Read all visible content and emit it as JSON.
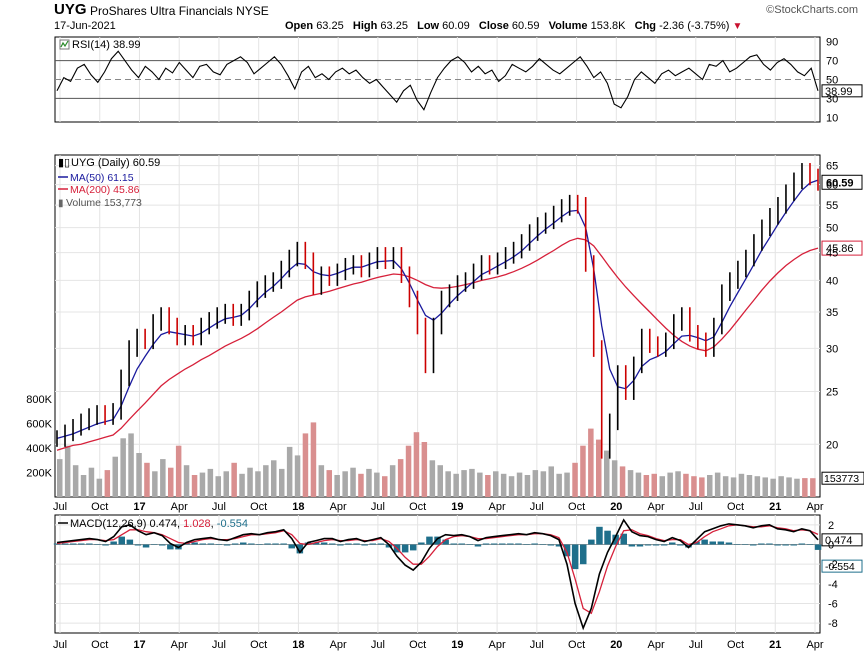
{
  "header": {
    "ticker": "UYG",
    "name": "ProShares Ultra Financials",
    "exchange": "NYSE",
    "date": "17-Jun-2021",
    "brand": "©StockCharts.com",
    "open_label": "Open",
    "open": "63.25",
    "high_label": "High",
    "high": "63.25",
    "low_label": "Low",
    "low": "60.09",
    "close_label": "Close",
    "close": "60.59",
    "volume_label": "Volume",
    "volume": "153.8K",
    "chg_label": "Chg",
    "chg": "-2.36 (-3.75%)",
    "chg_color": "#c8102e"
  },
  "chart_data": [
    {
      "type": "line",
      "panel": "rsi",
      "legend": "RSI(14) 38.99",
      "last_value_label": "38.99",
      "yticks": [
        10,
        30,
        50,
        70,
        90
      ],
      "ylim": [
        5,
        95
      ],
      "reference_lines": [
        30,
        70
      ],
      "series": [
        {
          "name": "RSI(14)",
          "values": [
            38,
            52,
            48,
            62,
            66,
            55,
            47,
            58,
            72,
            80,
            70,
            60,
            52,
            64,
            58,
            50,
            62,
            57,
            68,
            60,
            52,
            64,
            66,
            58,
            55,
            66,
            70,
            74,
            68,
            56,
            62,
            68,
            74,
            66,
            54,
            40,
            58,
            64,
            52,
            56,
            50,
            58,
            62,
            56,
            60,
            52,
            46,
            50,
            42,
            34,
            26,
            38,
            44,
            28,
            18,
            36,
            52,
            62,
            70,
            74,
            68,
            58,
            64,
            56,
            60,
            48,
            54,
            66,
            62,
            58,
            64,
            72,
            66,
            60,
            56,
            62,
            68,
            74,
            64,
            52,
            58,
            46,
            24,
            20,
            32,
            50,
            58,
            52,
            46,
            56,
            60,
            54,
            58,
            62,
            56,
            50,
            66,
            64,
            70,
            58,
            62,
            68,
            74,
            76,
            66,
            60,
            68,
            72,
            66,
            58,
            54,
            62,
            38
          ]
        }
      ],
      "colors": {
        "line": "#000000",
        "ref": "#555555",
        "mid": "#888888"
      }
    },
    {
      "type": "line",
      "panel": "price",
      "scale": "log",
      "legend_title": "UYG (Daily) 60.59",
      "ma50_label": "MA(50) 61.15",
      "ma200_label": "MA(200) 45.86",
      "volume_label": "Volume 153,773",
      "last_price_label": "60.59",
      "last_ma200_label": "45.86",
      "yticks": [
        20,
        25,
        30,
        35,
        40,
        45,
        50,
        55,
        60,
        65
      ],
      "ylim": [
        16,
        68
      ],
      "x_labels": [
        "Jul",
        "Oct",
        "17",
        "Apr",
        "Jul",
        "Oct",
        "18",
        "Apr",
        "Jul",
        "Oct",
        "19",
        "Apr",
        "Jul",
        "Oct",
        "20",
        "Apr",
        "Jul",
        "Oct",
        "21",
        "Apr"
      ],
      "series": [
        {
          "name": "UYG (Daily)",
          "values": [
            20.5,
            21.0,
            21.5,
            22.0,
            22.5,
            22.8,
            22.5,
            23.0,
            26.5,
            30.0,
            31.5,
            31.0,
            33.5,
            34.5,
            33.0,
            31.5,
            32.0,
            31.5,
            33.0,
            33.8,
            34.5,
            35.0,
            34.2,
            35.0,
            37.0,
            38.5,
            39.5,
            40.0,
            42.0,
            44.0,
            45.5,
            43.5,
            39.0,
            41.0,
            40.5,
            41.5,
            42.5,
            43.0,
            42.0,
            43.5,
            44.5,
            43.5,
            44.5,
            41.0,
            37.0,
            33.0,
            28.0,
            33.0,
            37.0,
            38.0,
            39.5,
            40.0,
            41.5,
            43.0,
            42.5,
            43.5,
            44.5,
            45.5,
            47.0,
            49.0,
            50.5,
            51.5,
            53.0,
            54.5,
            55.5,
            55.0,
            43.0,
            30.0,
            19.5,
            22.0,
            27.0,
            25.0,
            28.0,
            31.5,
            30.5,
            30.0,
            31.0,
            33.5,
            34.5,
            32.0,
            31.0,
            30.0,
            33.0,
            38.0,
            40.0,
            42.0,
            44.0,
            47.0,
            50.0,
            52.5,
            55.0,
            58.0,
            61.0,
            63.5,
            62.0,
            60.59
          ]
        },
        {
          "name": "MA(50)",
          "values": [
            20.5,
            20.7,
            20.9,
            21.2,
            21.5,
            21.8,
            22.0,
            22.2,
            23.5,
            25.5,
            27.5,
            29.0,
            30.5,
            31.8,
            32.2,
            32.0,
            31.8,
            31.6,
            32.0,
            32.7,
            33.4,
            34.0,
            34.2,
            34.5,
            35.5,
            36.8,
            38.0,
            39.0,
            40.3,
            41.8,
            43.0,
            42.8,
            41.5,
            41.0,
            40.8,
            41.2,
            41.8,
            42.3,
            42.3,
            42.8,
            43.3,
            43.4,
            43.5,
            42.0,
            39.5,
            36.8,
            34.5,
            33.8,
            34.8,
            36.2,
            37.5,
            38.6,
            39.8,
            41.0,
            41.7,
            42.5,
            43.3,
            44.2,
            45.3,
            46.8,
            48.3,
            49.7,
            51.0,
            52.4,
            53.6,
            53.8,
            50.0,
            42.0,
            33.0,
            27.5,
            25.5,
            25.3,
            26.2,
            27.8,
            28.6,
            29.0,
            29.6,
            30.6,
            31.6,
            31.7,
            31.4,
            31.0,
            31.5,
            33.5,
            35.8,
            38.0,
            40.3,
            42.8,
            45.5,
            48.0,
            50.7,
            53.4,
            56.0,
            58.6,
            60.4,
            61.15
          ]
        },
        {
          "name": "MA(200)",
          "values": [
            19.5,
            19.7,
            19.9,
            20.0,
            20.2,
            20.4,
            20.6,
            20.8,
            21.4,
            22.2,
            23.0,
            23.8,
            24.7,
            25.6,
            26.3,
            26.9,
            27.5,
            28.0,
            28.6,
            29.1,
            29.7,
            30.3,
            30.8,
            31.3,
            31.9,
            32.6,
            33.4,
            34.2,
            35.0,
            35.9,
            36.8,
            37.3,
            37.6,
            37.9,
            38.2,
            38.6,
            39.0,
            39.4,
            39.7,
            40.1,
            40.5,
            40.8,
            41.1,
            41.0,
            40.6,
            40.0,
            39.3,
            38.8,
            38.7,
            38.8,
            39.0,
            39.3,
            39.6,
            40.0,
            40.3,
            40.6,
            41.0,
            41.5,
            42.1,
            42.8,
            43.6,
            44.5,
            45.4,
            46.4,
            47.3,
            47.8,
            47.5,
            46.3,
            44.3,
            42.3,
            40.5,
            38.9,
            37.5,
            36.2,
            35.0,
            33.8,
            32.7,
            31.7,
            30.9,
            30.3,
            29.9,
            29.7,
            30.2,
            31.2,
            32.4,
            33.8,
            35.3,
            36.8,
            38.4,
            39.9,
            41.3,
            42.6,
            43.7,
            44.7,
            45.4,
            45.86
          ]
        }
      ],
      "colors": {
        "price_up": "#000000",
        "price_down": "#cc0000",
        "ma50": "#1a1a9e",
        "ma200": "#d6203a",
        "last_price_box": "#000000"
      }
    },
    {
      "type": "bar",
      "panel": "volume",
      "yticks_labels": [
        "200K",
        "400K",
        "600K",
        "800K"
      ],
      "yticks": [
        200000,
        400000,
        600000,
        800000
      ],
      "last_value_label": "153773",
      "values": [
        310000,
        420000,
        260000,
        180000,
        240000,
        150000,
        220000,
        330000,
        480000,
        520000,
        360000,
        280000,
        210000,
        310000,
        240000,
        420000,
        260000,
        180000,
        200000,
        230000,
        170000,
        210000,
        280000,
        190000,
        240000,
        210000,
        260000,
        300000,
        230000,
        410000,
        340000,
        520000,
        610000,
        260000,
        220000,
        180000,
        210000,
        240000,
        190000,
        230000,
        200000,
        170000,
        260000,
        310000,
        420000,
        530000,
        450000,
        300000,
        260000,
        210000,
        190000,
        220000,
        230000,
        200000,
        180000,
        210000,
        190000,
        170000,
        200000,
        180000,
        220000,
        210000,
        250000,
        190000,
        200000,
        280000,
        420000,
        560000,
        470000,
        380000,
        300000,
        250000,
        220000,
        200000,
        180000,
        190000,
        170000,
        200000,
        210000,
        190000,
        170000,
        160000,
        180000,
        200000,
        170000,
        160000,
        190000,
        180000,
        170000,
        160000,
        150000,
        170000,
        160000,
        150000,
        155000,
        153773
      ],
      "colors": {
        "up": "#a9a9a9",
        "down": "#d98f8f"
      }
    },
    {
      "type": "line",
      "panel": "macd",
      "legend_label": "MACD(12,26,9)",
      "macd_value": "0.474",
      "signal_value": "1.028",
      "hist_value": "-0.554",
      "last_macd_label": "0.474",
      "last_hist_label": "-0.554",
      "yticks": [
        2,
        0,
        -2,
        -4,
        -6,
        -8
      ],
      "ylim": [
        -9,
        3
      ],
      "series": [
        {
          "name": "MACD",
          "values": [
            0.2,
            0.3,
            0.4,
            0.5,
            0.6,
            0.5,
            0.3,
            0.8,
            1.8,
            2.0,
            1.4,
            1.0,
            1.2,
            0.9,
            0.1,
            -0.3,
            0.2,
            0.5,
            0.6,
            0.7,
            0.5,
            0.4,
            0.7,
            1.0,
            1.1,
            1.0,
            1.2,
            1.3,
            1.5,
            0.6,
            -0.8,
            0.2,
            0.4,
            0.6,
            0.6,
            0.3,
            0.5,
            0.6,
            0.3,
            0.5,
            0.7,
            0.0,
            -1.2,
            -2.1,
            -2.6,
            -1.8,
            -0.4,
            0.6,
            1.0,
            0.9,
            1.0,
            0.8,
            0.4,
            0.7,
            0.8,
            0.9,
            1.0,
            1.1,
            1.0,
            1.2,
            1.1,
            0.9,
            0.5,
            -2.0,
            -6.0,
            -8.5,
            -6.5,
            -3.0,
            -0.8,
            0.8,
            2.5,
            1.3,
            0.9,
            0.8,
            0.5,
            0.3,
            0.7,
            0.4,
            -0.3,
            0.5,
            1.3,
            1.6,
            1.9,
            2.1,
            2.0,
            1.9,
            1.7,
            1.9,
            2.0,
            1.6,
            1.5,
            1.3,
            1.6,
            1.4,
            0.474
          ]
        },
        {
          "name": "Signal",
          "values": [
            0.1,
            0.2,
            0.3,
            0.4,
            0.5,
            0.5,
            0.4,
            0.5,
            1.0,
            1.5,
            1.5,
            1.3,
            1.2,
            1.0,
            0.6,
            0.2,
            0.1,
            0.3,
            0.5,
            0.6,
            0.5,
            0.5,
            0.6,
            0.8,
            1.0,
            1.0,
            1.1,
            1.2,
            1.4,
            1.0,
            0.1,
            0.0,
            0.2,
            0.4,
            0.5,
            0.4,
            0.4,
            0.5,
            0.4,
            0.4,
            0.6,
            0.3,
            -0.4,
            -1.3,
            -2.0,
            -2.0,
            -1.2,
            -0.2,
            0.5,
            0.8,
            0.9,
            0.8,
            0.6,
            0.6,
            0.7,
            0.8,
            0.9,
            1.0,
            1.0,
            1.1,
            1.1,
            1.0,
            0.7,
            -0.8,
            -3.5,
            -6.5,
            -7.0,
            -4.8,
            -2.2,
            -0.2,
            1.4,
            1.5,
            1.1,
            0.9,
            0.6,
            0.4,
            0.5,
            0.5,
            0.0,
            0.2,
            0.8,
            1.3,
            1.6,
            1.9,
            2.0,
            1.9,
            1.8,
            1.8,
            1.9,
            1.7,
            1.6,
            1.4,
            1.5,
            1.4,
            1.028
          ]
        }
      ],
      "colors": {
        "macd": "#000000",
        "signal": "#d6203a",
        "hist": "#1f6f8b"
      }
    }
  ]
}
